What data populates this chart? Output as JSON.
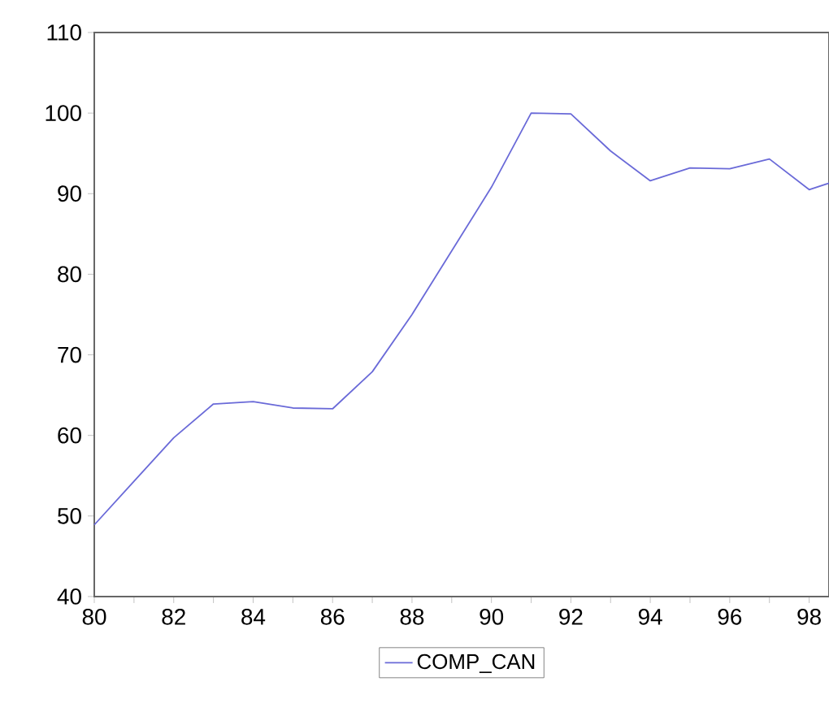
{
  "chart_data": {
    "type": "line",
    "x": [
      80,
      81,
      82,
      83,
      84,
      85,
      86,
      87,
      88,
      89,
      90,
      91,
      92,
      93,
      94,
      95,
      96,
      97,
      98,
      98.5
    ],
    "series": [
      {
        "name": "COMP_CAN",
        "color": "#6a6ad8",
        "values": [
          48.9,
          54.3,
          59.7,
          63.9,
          64.2,
          63.4,
          63.3,
          67.9,
          75.0,
          82.9,
          90.8,
          100.0,
          99.9,
          95.3,
          91.6,
          93.2,
          93.1,
          94.3,
          90.5,
          91.3
        ]
      }
    ],
    "xlim": [
      80,
      98.5
    ],
    "ylim": [
      40,
      110
    ],
    "xticks": [
      80,
      82,
      84,
      86,
      88,
      90,
      92,
      94,
      96,
      98
    ],
    "yticks": [
      40,
      50,
      60,
      70,
      80,
      90,
      100,
      110
    ],
    "grid": false,
    "legend": "bottom",
    "marker": "none",
    "line_style": "solid"
  }
}
